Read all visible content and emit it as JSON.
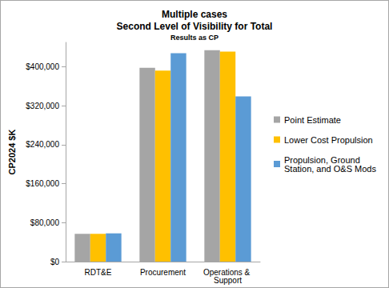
{
  "chart_data": {
    "type": "bar",
    "title": "Multiple cases\nSecond Level of Visibility for Total",
    "subtitle": "Results as CP",
    "y_label": "CP2024 $K",
    "categories": [
      "RDT&E",
      "Procurement",
      "Operations & Support"
    ],
    "series": [
      {
        "name": "Point Estimate",
        "color": "#a5a5a5",
        "values": [
          57000,
          398000,
          434000
        ]
      },
      {
        "name": "Lower Cost Propulsion",
        "color": "#ffc000",
        "values": [
          57000,
          392000,
          431000
        ]
      },
      {
        "name": "Propulsion, Ground Station, and O&S Mods",
        "color": "#5b9bd5",
        "values": [
          58000,
          428000,
          339000
        ]
      }
    ],
    "ylim": [
      0,
      450000
    ],
    "yticks": [
      {
        "value": 0,
        "label": "$0"
      },
      {
        "value": 80000,
        "label": "$80,000"
      },
      {
        "value": 160000,
        "label": "$160,000"
      },
      {
        "value": 240000,
        "label": "$240,000"
      },
      {
        "value": 320000,
        "label": "$320,000"
      },
      {
        "value": 400000,
        "label": "$400,000"
      }
    ],
    "grid": false,
    "legend": "right"
  }
}
